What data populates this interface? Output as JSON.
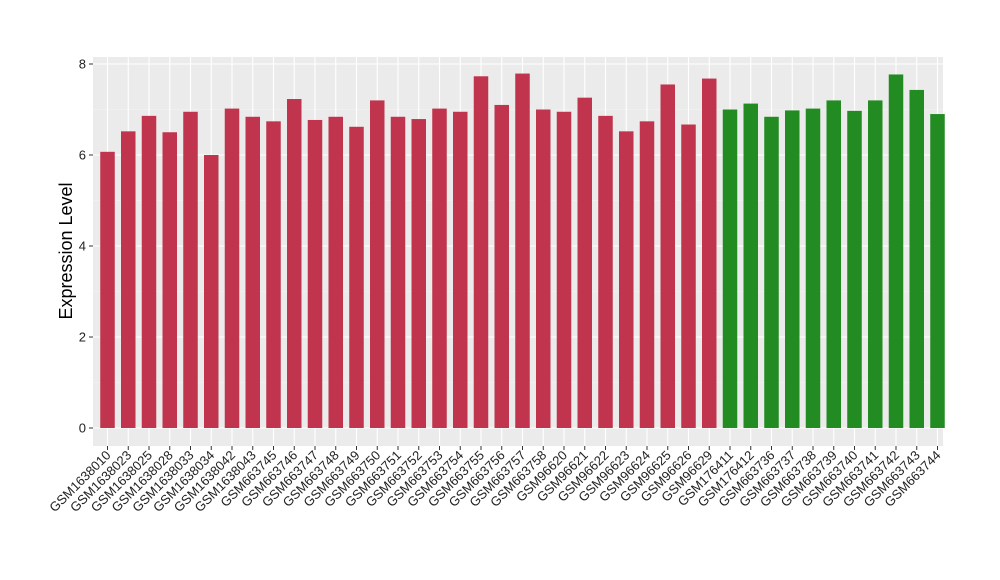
{
  "chart_data": {
    "type": "bar",
    "ylabel": "Expression Level",
    "xlabel": "",
    "ylim": [
      0,
      8.1
    ],
    "yticks": [
      0,
      2,
      4,
      6,
      8
    ],
    "grid": true,
    "colors": {
      "group1": "#c0344d",
      "group2": "#228b22",
      "panel": "#ebebeb",
      "gridline": "#ffffff"
    },
    "categories": [
      "GSM1638010",
      "GSM1638023",
      "GSM1638025",
      "GSM1638028",
      "GSM1638033",
      "GSM1638034",
      "GSM1638042",
      "GSM1638043",
      "GSM663745",
      "GSM663746",
      "GSM663747",
      "GSM663748",
      "GSM663749",
      "GSM663750",
      "GSM663751",
      "GSM663752",
      "GSM663753",
      "GSM663754",
      "GSM663755",
      "GSM663756",
      "GSM663757",
      "GSM663758",
      "GSM96620",
      "GSM96621",
      "GSM96622",
      "GSM96623",
      "GSM96624",
      "GSM96625",
      "GSM96626",
      "GSM96629",
      "GSM176411",
      "GSM176412",
      "GSM663736",
      "GSM663737",
      "GSM663738",
      "GSM663739",
      "GSM663740",
      "GSM663741",
      "GSM663742",
      "GSM663743",
      "GSM663744"
    ],
    "values": [
      6.07,
      6.52,
      6.86,
      6.5,
      6.95,
      6.0,
      7.02,
      6.84,
      6.74,
      7.23,
      6.77,
      6.84,
      6.62,
      7.2,
      6.84,
      6.79,
      7.02,
      6.95,
      7.73,
      7.1,
      7.79,
      7.0,
      6.95,
      7.26,
      6.86,
      6.52,
      6.74,
      7.55,
      6.67,
      7.68,
      7.0,
      7.13,
      6.84,
      6.98,
      7.02,
      7.2,
      6.97,
      7.2,
      7.77,
      7.43,
      6.9
    ],
    "groups": [
      1,
      1,
      1,
      1,
      1,
      1,
      1,
      1,
      1,
      1,
      1,
      1,
      1,
      1,
      1,
      1,
      1,
      1,
      1,
      1,
      1,
      1,
      1,
      1,
      1,
      1,
      1,
      1,
      1,
      1,
      2,
      2,
      2,
      2,
      2,
      2,
      2,
      2,
      2,
      2,
      2
    ]
  }
}
